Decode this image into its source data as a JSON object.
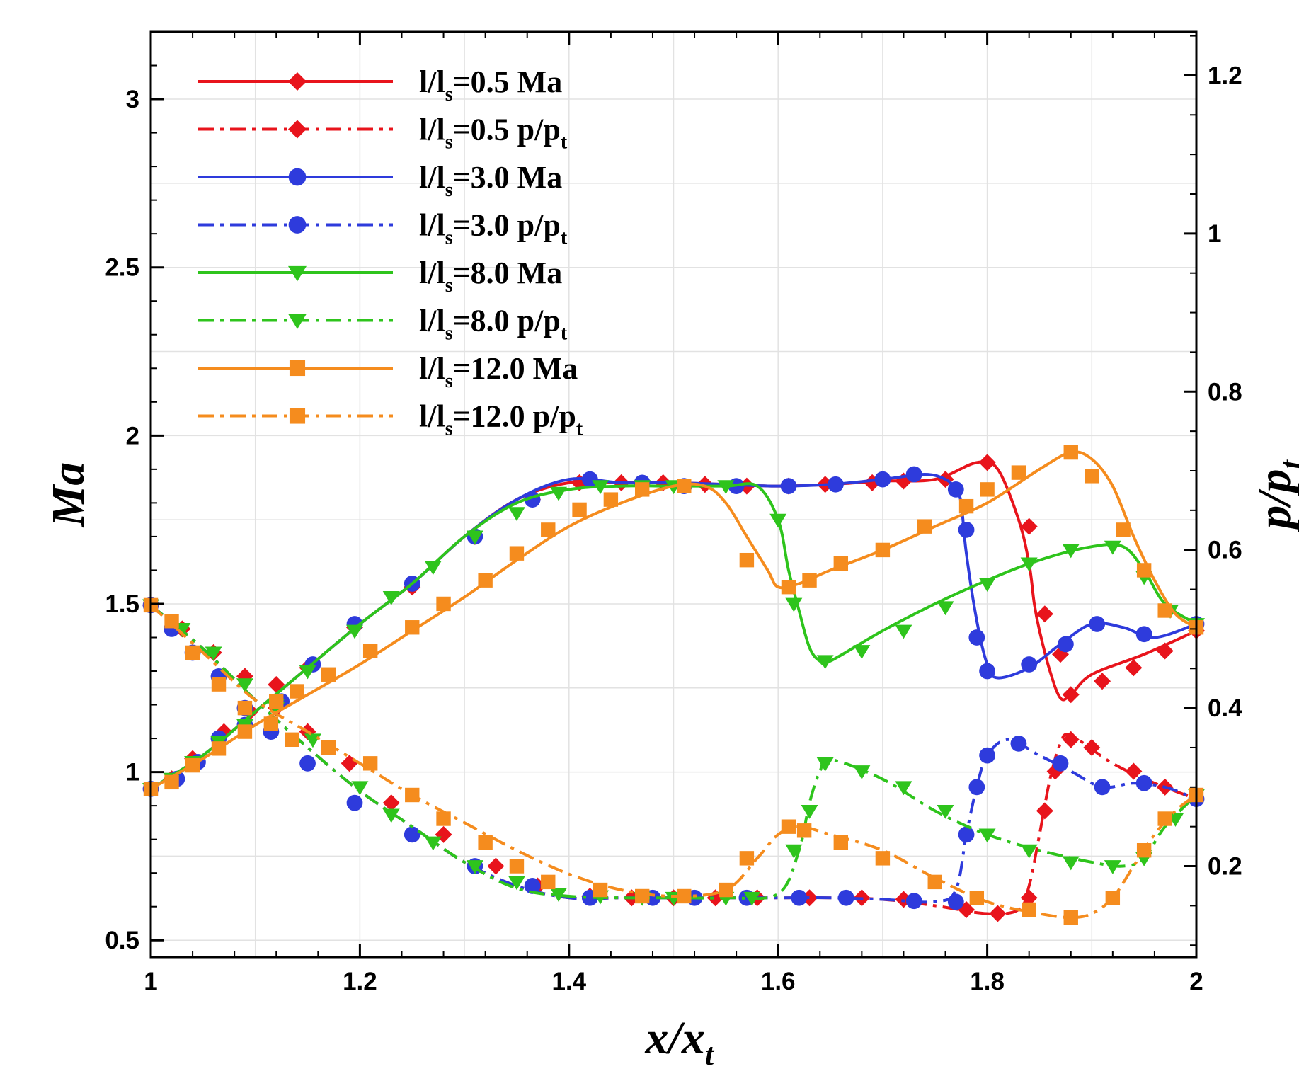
{
  "chart_data": {
    "type": "line",
    "xlabel": "x/x_t",
    "ylabel_left": "Ma",
    "ylabel_right": "p/p_t",
    "xlim": [
      1.0,
      2.0
    ],
    "ylim_left": [
      0.45,
      3.2
    ],
    "ylim_right": [
      0.085,
      1.255
    ],
    "x_ticks": [
      1,
      1.2,
      1.4,
      1.6,
      1.8,
      2
    ],
    "x_tick_labels": [
      "1",
      "1.2",
      "1.4",
      "1.6",
      "1.8",
      "2"
    ],
    "y_left_ticks": [
      0.5,
      1,
      1.5,
      2,
      2.5,
      3
    ],
    "y_left_tick_labels": [
      "0.5",
      "1",
      "1.5",
      "2",
      "2.5",
      "3"
    ],
    "y_right_ticks": [
      0.2,
      0.4,
      0.6,
      0.8,
      1.0,
      1.2
    ],
    "y_right_tick_labels": [
      "0.2",
      "0.4",
      "0.6",
      "0.8",
      "1",
      "1.2"
    ],
    "grid": true,
    "legend_position": "top-left",
    "colors": {
      "red": "#e8141c",
      "blue": "#2e3bdc",
      "green": "#2ec41c",
      "orange": "#f58c1e"
    },
    "series": [
      {
        "name": "l/ls=0.5 Ma",
        "legend_main": "l/l",
        "legend_sub": "s",
        "legend_rest": "=0.5 Ma",
        "legend_rest_sub": "",
        "axis": "left",
        "color": "#e8141c",
        "style": "solid",
        "marker": "diamond",
        "x": [
          1.0,
          1.05,
          1.1,
          1.15,
          1.2,
          1.25,
          1.3,
          1.35,
          1.4,
          1.45,
          1.5,
          1.55,
          1.6,
          1.65,
          1.7,
          1.75,
          1.79,
          1.81,
          1.83,
          1.84,
          1.845,
          1.85,
          1.86,
          1.87,
          1.88,
          1.9,
          1.95,
          2.0
        ],
        "y": [
          0.95,
          1.05,
          1.18,
          1.31,
          1.44,
          1.56,
          1.7,
          1.81,
          1.86,
          1.86,
          1.86,
          1.855,
          1.85,
          1.855,
          1.865,
          1.87,
          1.92,
          1.9,
          1.75,
          1.62,
          1.5,
          1.42,
          1.3,
          1.22,
          1.23,
          1.29,
          1.35,
          1.42
        ],
        "markers_x": [
          1.0,
          1.02,
          1.04,
          1.07,
          1.095,
          1.12,
          1.15,
          1.195,
          1.25,
          1.31,
          1.365,
          1.41,
          1.45,
          1.49,
          1.53,
          1.57,
          1.61,
          1.645,
          1.69,
          1.72,
          1.76,
          1.8,
          1.84,
          1.855,
          1.87,
          1.88,
          1.91,
          1.94,
          1.97,
          2.0
        ],
        "markers_y": [
          0.95,
          0.98,
          1.04,
          1.12,
          1.18,
          1.26,
          1.31,
          1.43,
          1.55,
          1.7,
          1.81,
          1.86,
          1.86,
          1.86,
          1.855,
          1.85,
          1.85,
          1.855,
          1.86,
          1.865,
          1.87,
          1.92,
          1.73,
          1.47,
          1.35,
          1.23,
          1.27,
          1.31,
          1.36,
          1.42
        ]
      },
      {
        "name": "l/ls=0.5 p/pt",
        "legend_main": "l/l",
        "legend_sub": "s",
        "legend_rest": "=0.5 p/p",
        "legend_rest_sub": "t",
        "axis": "right",
        "color": "#e8141c",
        "style": "dashdot",
        "marker": "diamond",
        "x": [
          1.0,
          1.05,
          1.1,
          1.15,
          1.2,
          1.25,
          1.3,
          1.35,
          1.4,
          1.45,
          1.5,
          1.55,
          1.6,
          1.65,
          1.7,
          1.75,
          1.8,
          1.83,
          1.84,
          1.85,
          1.86,
          1.87,
          1.88,
          1.92,
          1.96,
          2.0
        ],
        "y": [
          0.53,
          0.475,
          0.41,
          0.35,
          0.295,
          0.25,
          0.205,
          0.175,
          0.16,
          0.16,
          0.16,
          0.16,
          0.16,
          0.16,
          0.158,
          0.15,
          0.14,
          0.145,
          0.175,
          0.24,
          0.31,
          0.355,
          0.365,
          0.33,
          0.305,
          0.285
        ],
        "markers_x": [
          1.0,
          1.03,
          1.06,
          1.09,
          1.12,
          1.15,
          1.19,
          1.23,
          1.28,
          1.33,
          1.37,
          1.42,
          1.46,
          1.5,
          1.54,
          1.58,
          1.63,
          1.68,
          1.72,
          1.78,
          1.81,
          1.84,
          1.855,
          1.865,
          1.88,
          1.9,
          1.94,
          1.97,
          2.0
        ],
        "markers_y": [
          0.53,
          0.5,
          0.47,
          0.44,
          0.4,
          0.37,
          0.33,
          0.28,
          0.24,
          0.2,
          0.175,
          0.162,
          0.16,
          0.16,
          0.16,
          0.16,
          0.16,
          0.16,
          0.158,
          0.145,
          0.14,
          0.16,
          0.27,
          0.32,
          0.36,
          0.35,
          0.32,
          0.3,
          0.285
        ]
      },
      {
        "name": "l/ls=3.0 Ma",
        "legend_main": "l/l",
        "legend_sub": "s",
        "legend_rest": "=3.0 Ma",
        "legend_rest_sub": "",
        "axis": "left",
        "color": "#2e3bdc",
        "style": "solid",
        "marker": "circle",
        "x": [
          1.0,
          1.05,
          1.1,
          1.15,
          1.2,
          1.25,
          1.3,
          1.35,
          1.4,
          1.45,
          1.5,
          1.55,
          1.6,
          1.65,
          1.7,
          1.74,
          1.76,
          1.77,
          1.775,
          1.78,
          1.79,
          1.8,
          1.81,
          1.84,
          1.87,
          1.9,
          1.93,
          1.96,
          2.0
        ],
        "y": [
          0.95,
          1.05,
          1.18,
          1.31,
          1.44,
          1.56,
          1.7,
          1.81,
          1.87,
          1.86,
          1.86,
          1.855,
          1.85,
          1.855,
          1.87,
          1.885,
          1.87,
          1.84,
          1.8,
          1.65,
          1.45,
          1.32,
          1.28,
          1.31,
          1.38,
          1.44,
          1.43,
          1.4,
          1.44
        ],
        "markers_x": [
          1.0,
          1.025,
          1.045,
          1.065,
          1.09,
          1.125,
          1.155,
          1.195,
          1.25,
          1.31,
          1.365,
          1.42,
          1.47,
          1.51,
          1.56,
          1.61,
          1.655,
          1.7,
          1.73,
          1.77,
          1.78,
          1.79,
          1.8,
          1.84,
          1.875,
          1.905,
          1.95,
          2.0
        ],
        "markers_y": [
          0.95,
          0.98,
          1.03,
          1.1,
          1.14,
          1.21,
          1.32,
          1.44,
          1.56,
          1.7,
          1.81,
          1.87,
          1.86,
          1.85,
          1.85,
          1.85,
          1.855,
          1.87,
          1.885,
          1.84,
          1.72,
          1.4,
          1.3,
          1.32,
          1.38,
          1.44,
          1.41,
          1.44
        ]
      },
      {
        "name": "l/ls=3.0 p/pt",
        "legend_main": "l/l",
        "legend_sub": "s",
        "legend_rest": "=3.0 p/p",
        "legend_rest_sub": "t",
        "axis": "right",
        "color": "#2e3bdc",
        "style": "dashdot",
        "marker": "circle",
        "x": [
          1.0,
          1.05,
          1.1,
          1.15,
          1.2,
          1.25,
          1.3,
          1.35,
          1.4,
          1.45,
          1.5,
          1.55,
          1.6,
          1.65,
          1.7,
          1.75,
          1.77,
          1.78,
          1.79,
          1.8,
          1.82,
          1.85,
          1.88,
          1.91,
          1.94,
          1.97,
          2.0
        ],
        "y": [
          0.53,
          0.475,
          0.41,
          0.35,
          0.295,
          0.25,
          0.205,
          0.175,
          0.16,
          0.16,
          0.16,
          0.16,
          0.16,
          0.16,
          0.158,
          0.155,
          0.17,
          0.24,
          0.3,
          0.34,
          0.36,
          0.34,
          0.32,
          0.3,
          0.305,
          0.3,
          0.285
        ],
        "markers_x": [
          1.0,
          1.02,
          1.04,
          1.065,
          1.09,
          1.115,
          1.15,
          1.195,
          1.25,
          1.31,
          1.365,
          1.42,
          1.48,
          1.52,
          1.57,
          1.62,
          1.665,
          1.73,
          1.77,
          1.78,
          1.79,
          1.8,
          1.83,
          1.87,
          1.91,
          1.95,
          2.0
        ],
        "markers_y": [
          0.53,
          0.5,
          0.47,
          0.44,
          0.4,
          0.37,
          0.33,
          0.28,
          0.24,
          0.2,
          0.175,
          0.16,
          0.16,
          0.16,
          0.16,
          0.16,
          0.16,
          0.156,
          0.155,
          0.24,
          0.3,
          0.34,
          0.355,
          0.33,
          0.3,
          0.305,
          0.285
        ]
      },
      {
        "name": "l/ls=8.0 Ma",
        "legend_main": "l/l",
        "legend_sub": "s",
        "legend_rest": "=8.0 Ma",
        "legend_rest_sub": "",
        "axis": "left",
        "color": "#2ec41c",
        "style": "solid",
        "marker": "triangle-down",
        "x": [
          1.0,
          1.05,
          1.1,
          1.15,
          1.2,
          1.25,
          1.3,
          1.35,
          1.4,
          1.45,
          1.5,
          1.55,
          1.58,
          1.6,
          1.61,
          1.62,
          1.63,
          1.64,
          1.65,
          1.7,
          1.75,
          1.8,
          1.85,
          1.9,
          1.93,
          1.95,
          1.97,
          2.0
        ],
        "y": [
          0.95,
          1.05,
          1.18,
          1.31,
          1.44,
          1.56,
          1.7,
          1.8,
          1.84,
          1.85,
          1.85,
          1.85,
          1.85,
          1.75,
          1.6,
          1.48,
          1.37,
          1.33,
          1.33,
          1.42,
          1.5,
          1.57,
          1.63,
          1.67,
          1.67,
          1.6,
          1.5,
          1.44
        ],
        "markers_x": [
          1.0,
          1.02,
          1.04,
          1.065,
          1.09,
          1.12,
          1.15,
          1.195,
          1.23,
          1.27,
          1.31,
          1.35,
          1.39,
          1.43,
          1.47,
          1.5,
          1.55,
          1.6,
          1.615,
          1.645,
          1.68,
          1.72,
          1.76,
          1.8,
          1.84,
          1.88,
          1.92,
          1.95,
          1.975,
          2.0
        ],
        "markers_y": [
          0.95,
          0.98,
          1.03,
          1.09,
          1.14,
          1.2,
          1.3,
          1.42,
          1.52,
          1.61,
          1.7,
          1.77,
          1.83,
          1.85,
          1.85,
          1.85,
          1.85,
          1.75,
          1.5,
          1.33,
          1.36,
          1.42,
          1.49,
          1.56,
          1.62,
          1.66,
          1.67,
          1.58,
          1.48,
          1.44
        ]
      },
      {
        "name": "l/ls=8.0 p/pt",
        "legend_main": "l/l",
        "legend_sub": "s",
        "legend_rest": "=8.0 p/p",
        "legend_rest_sub": "t",
        "axis": "right",
        "color": "#2ec41c",
        "style": "dashdot",
        "marker": "triangle-down",
        "x": [
          1.0,
          1.05,
          1.1,
          1.15,
          1.2,
          1.25,
          1.3,
          1.35,
          1.4,
          1.45,
          1.5,
          1.55,
          1.6,
          1.62,
          1.63,
          1.64,
          1.65,
          1.7,
          1.75,
          1.8,
          1.85,
          1.9,
          1.93,
          1.95,
          1.97,
          2.0
        ],
        "y": [
          0.53,
          0.475,
          0.41,
          0.35,
          0.295,
          0.25,
          0.205,
          0.172,
          0.162,
          0.16,
          0.16,
          0.16,
          0.165,
          0.22,
          0.28,
          0.32,
          0.335,
          0.31,
          0.27,
          0.24,
          0.22,
          0.205,
          0.2,
          0.21,
          0.25,
          0.29
        ],
        "markers_x": [
          1.0,
          1.03,
          1.06,
          1.09,
          1.12,
          1.155,
          1.2,
          1.23,
          1.27,
          1.31,
          1.35,
          1.39,
          1.43,
          1.47,
          1.5,
          1.55,
          1.575,
          1.615,
          1.63,
          1.645,
          1.68,
          1.72,
          1.76,
          1.8,
          1.84,
          1.88,
          1.92,
          1.95,
          1.98,
          2.0
        ],
        "markers_y": [
          0.53,
          0.5,
          0.47,
          0.43,
          0.4,
          0.36,
          0.3,
          0.265,
          0.23,
          0.2,
          0.18,
          0.165,
          0.162,
          0.16,
          0.16,
          0.16,
          0.16,
          0.22,
          0.27,
          0.33,
          0.32,
          0.3,
          0.27,
          0.24,
          0.22,
          0.205,
          0.2,
          0.21,
          0.26,
          0.29
        ]
      },
      {
        "name": "l/ls=12.0 Ma",
        "legend_main": "l/l",
        "legend_sub": "s",
        "legend_rest": "=12.0 Ma",
        "legend_rest_sub": "",
        "axis": "left",
        "color": "#f58c1e",
        "style": "solid",
        "marker": "square",
        "x": [
          1.0,
          1.05,
          1.1,
          1.15,
          1.2,
          1.25,
          1.3,
          1.35,
          1.4,
          1.45,
          1.5,
          1.53,
          1.55,
          1.57,
          1.59,
          1.6,
          1.62,
          1.65,
          1.7,
          1.75,
          1.8,
          1.85,
          1.88,
          1.9,
          1.92,
          1.94,
          1.96,
          1.98,
          2.0
        ],
        "y": [
          0.95,
          1.04,
          1.14,
          1.23,
          1.32,
          1.42,
          1.52,
          1.63,
          1.73,
          1.8,
          1.85,
          1.85,
          1.8,
          1.7,
          1.6,
          1.55,
          1.56,
          1.6,
          1.66,
          1.73,
          1.8,
          1.9,
          1.95,
          1.93,
          1.85,
          1.7,
          1.57,
          1.47,
          1.43
        ],
        "markers_x": [
          1.0,
          1.02,
          1.04,
          1.065,
          1.09,
          1.12,
          1.14,
          1.17,
          1.21,
          1.25,
          1.28,
          1.32,
          1.35,
          1.38,
          1.41,
          1.44,
          1.47,
          1.51,
          1.57,
          1.61,
          1.63,
          1.66,
          1.7,
          1.74,
          1.78,
          1.8,
          1.83,
          1.88,
          1.9,
          1.93,
          1.95,
          1.97,
          2.0
        ],
        "markers_y": [
          0.95,
          0.97,
          1.02,
          1.07,
          1.12,
          1.21,
          1.24,
          1.29,
          1.36,
          1.43,
          1.5,
          1.57,
          1.65,
          1.72,
          1.78,
          1.81,
          1.84,
          1.85,
          1.63,
          1.55,
          1.57,
          1.62,
          1.66,
          1.73,
          1.79,
          1.84,
          1.89,
          1.95,
          1.88,
          1.72,
          1.6,
          1.48,
          1.43
        ]
      },
      {
        "name": "l/ls=12.0 p/pt",
        "legend_main": "l/l",
        "legend_sub": "s",
        "legend_rest": "=12.0 p/p",
        "legend_rest_sub": "t",
        "axis": "right",
        "color": "#f58c1e",
        "style": "dashdot",
        "marker": "square",
        "x": [
          1.0,
          1.05,
          1.1,
          1.15,
          1.2,
          1.25,
          1.3,
          1.35,
          1.4,
          1.45,
          1.5,
          1.55,
          1.58,
          1.6,
          1.62,
          1.65,
          1.7,
          1.75,
          1.8,
          1.85,
          1.88,
          1.9,
          1.92,
          1.94,
          1.96,
          1.98,
          2.0
        ],
        "y": [
          0.53,
          0.47,
          0.41,
          0.37,
          0.33,
          0.29,
          0.255,
          0.22,
          0.19,
          0.17,
          0.162,
          0.17,
          0.21,
          0.24,
          0.25,
          0.24,
          0.22,
          0.185,
          0.155,
          0.14,
          0.135,
          0.14,
          0.16,
          0.2,
          0.24,
          0.27,
          0.29
        ],
        "markers_x": [
          1.0,
          1.02,
          1.04,
          1.065,
          1.09,
          1.115,
          1.135,
          1.17,
          1.21,
          1.25,
          1.28,
          1.32,
          1.35,
          1.38,
          1.43,
          1.47,
          1.51,
          1.55,
          1.57,
          1.61,
          1.625,
          1.66,
          1.7,
          1.75,
          1.79,
          1.84,
          1.88,
          1.92,
          1.95,
          1.97,
          2.0
        ],
        "markers_y": [
          0.53,
          0.51,
          0.47,
          0.43,
          0.4,
          0.38,
          0.36,
          0.35,
          0.33,
          0.29,
          0.26,
          0.23,
          0.2,
          0.18,
          0.17,
          0.162,
          0.162,
          0.17,
          0.21,
          0.25,
          0.245,
          0.23,
          0.21,
          0.18,
          0.16,
          0.145,
          0.135,
          0.16,
          0.22,
          0.26,
          0.29
        ]
      }
    ]
  }
}
